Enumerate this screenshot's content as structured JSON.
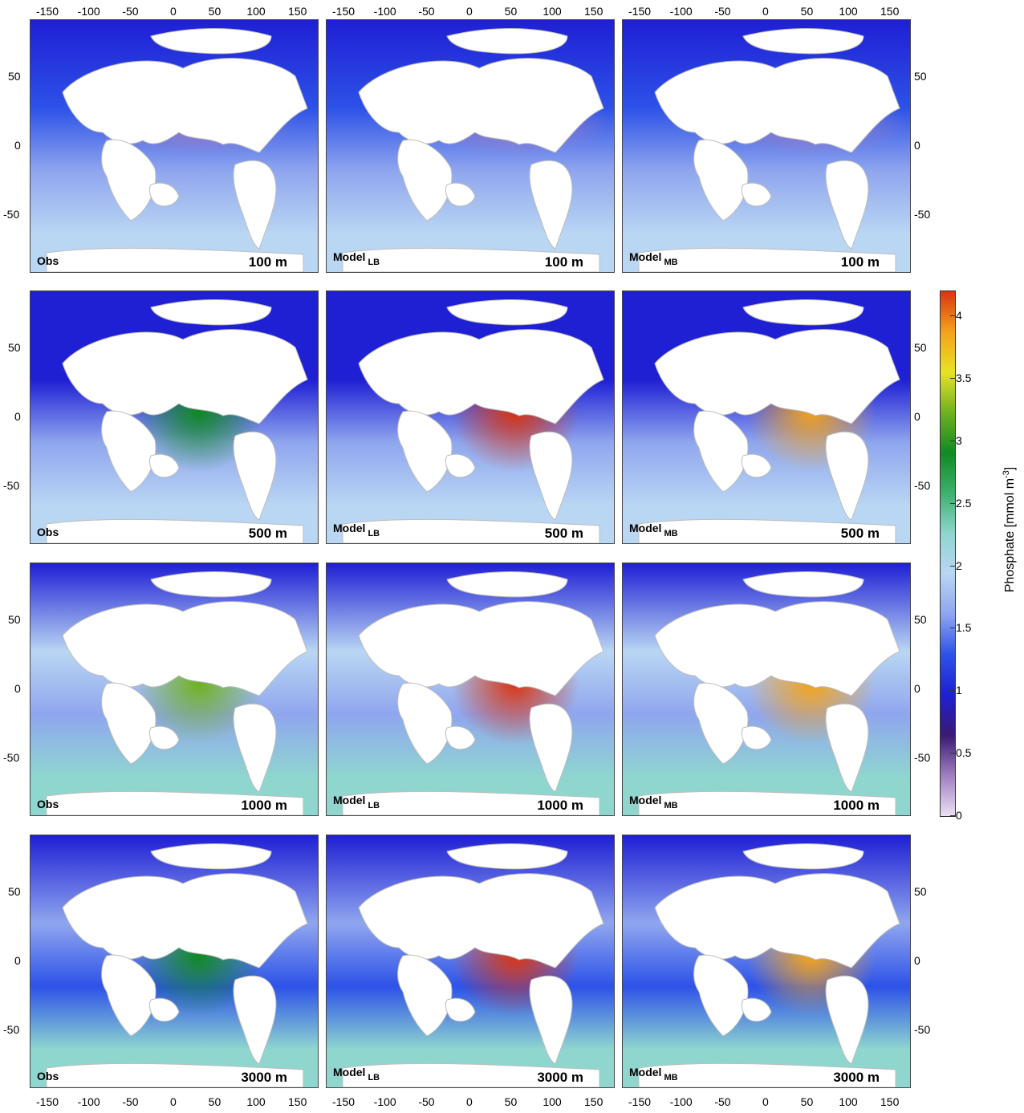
{
  "columns": [
    {
      "label": "Obs",
      "sub": ""
    },
    {
      "label": "Model",
      "sub": "LB"
    },
    {
      "label": "Model",
      "sub": "MB"
    }
  ],
  "depths": [
    "100 m",
    "500 m",
    "1000 m",
    "3000 m"
  ],
  "lon_ticks": [
    "-150",
    "-100",
    "-50",
    "0",
    "50",
    "100",
    "150"
  ],
  "lat_ticks": [
    "50",
    "0",
    "-50"
  ],
  "colorbar": {
    "title": "Phosphate [mmol m",
    "title_sup": "-3",
    "title_end": "]",
    "ticks": [
      "4",
      "3.5",
      "3",
      "2.5",
      "2",
      "1.5",
      "1",
      "0.5",
      "0"
    ],
    "range": [
      0,
      4.2
    ],
    "stops": [
      "#ece0f4",
      "#9f7fc0",
      "#3a1a72",
      "#1f1fd4",
      "#2d52e8",
      "#8fa6ee",
      "#b9d6f3",
      "#8fd6cf",
      "#3fb06e",
      "#108a22",
      "#6fb120",
      "#e8e225",
      "#f4a21a",
      "#d93412"
    ]
  },
  "colors": {
    "land": "#ffffff",
    "coast": "#bdbdbd",
    "frame": "#444444"
  }
}
